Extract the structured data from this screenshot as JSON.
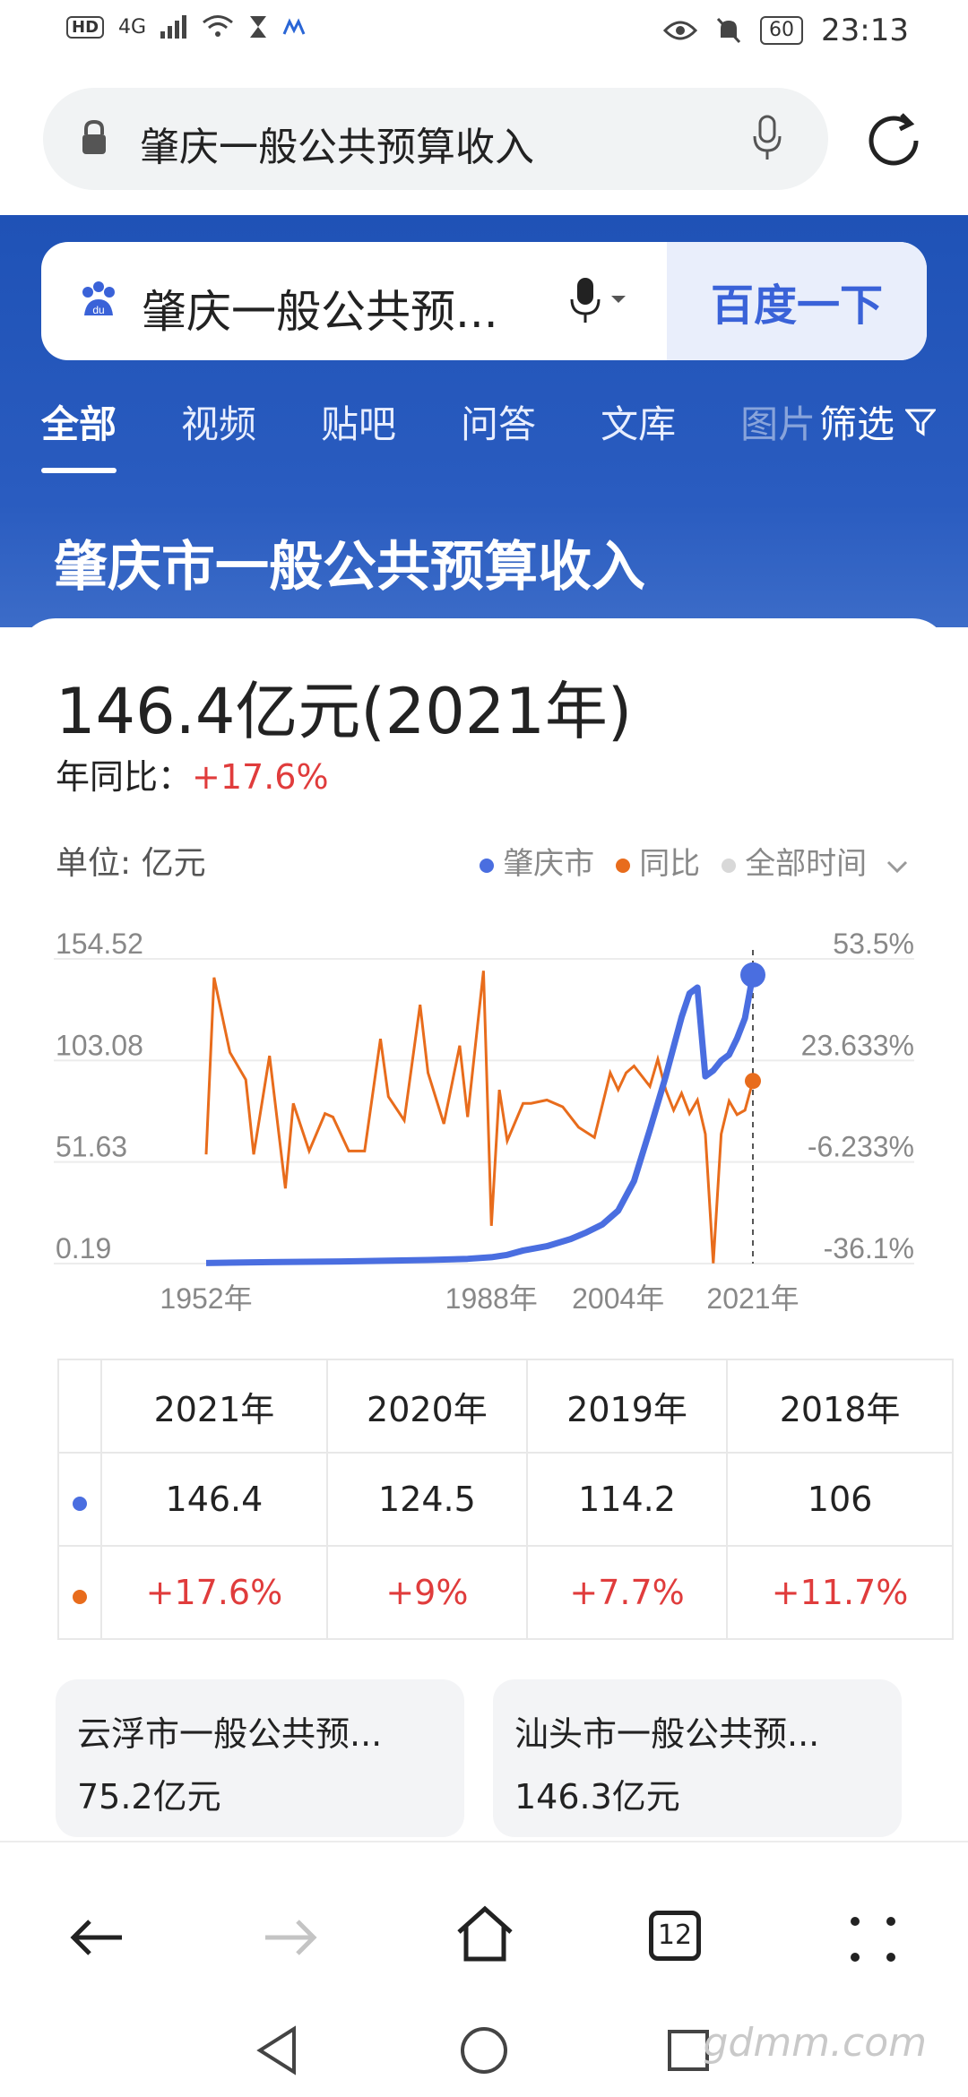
{
  "status_bar": {
    "time": "23:13",
    "battery": "60",
    "network": "4G",
    "hd": "HD"
  },
  "address_bar": {
    "query": "肇庆一般公共预算收入"
  },
  "baidu": {
    "query": "肇庆一般公共预...",
    "search_button": "百度一下",
    "tabs": [
      "全部",
      "视频",
      "贴吧",
      "问答",
      "文库",
      "图片"
    ],
    "filter_label": "筛选"
  },
  "page_title": "肇庆市一般公共预算收入",
  "headline": {
    "value": "146.4亿元(2021年)",
    "yoy_label": "年同比：",
    "yoy_value": "+17.6%"
  },
  "unit_label": "单位: 亿元",
  "legend": {
    "series1": "肇庆市",
    "series2": "同比",
    "time_filter": "全部时间"
  },
  "colors": {
    "series1": "#4a6ee0",
    "series2": "#e86c1c",
    "accent": "#3a62d8",
    "positive": "#e03c3c"
  },
  "chart_data": {
    "type": "line",
    "x_tick_labels": [
      "1952年",
      "1988年",
      "2004年",
      "2021年"
    ],
    "left_axis_ticks": [
      "154.52",
      "103.08",
      "51.63",
      "0.19"
    ],
    "right_axis_ticks": [
      "53.5%",
      "23.633%",
      "-6.233%",
      "-36.1%"
    ],
    "left_ylim": [
      0.19,
      154.52
    ],
    "right_ylim": [
      -36.1,
      53.5
    ],
    "xlim": [
      1952,
      2021
    ],
    "grid": true,
    "series": [
      {
        "name": "肇庆市",
        "axis": "left",
        "x": [
          1952,
          1960,
          1970,
          1980,
          1985,
          1988,
          1990,
          1992,
          1995,
          1998,
          2000,
          2002,
          2004,
          2006,
          2008,
          2010,
          2012,
          2013,
          2014,
          2015,
          2016,
          2017,
          2018,
          2019,
          2020,
          2021
        ],
        "values": [
          0.5,
          0.9,
          1.3,
          2.0,
          2.6,
          3.4,
          4.6,
          6.8,
          9.0,
          12.6,
          16.0,
          20.0,
          27.0,
          42.0,
          68.0,
          95.0,
          125.0,
          137.0,
          140.0,
          95.0,
          98.0,
          103.0,
          106.0,
          114.2,
          124.5,
          146.4
        ]
      },
      {
        "name": "同比",
        "axis": "right",
        "x": [
          1952,
          1953,
          1955,
          1957,
          1958,
          1960,
          1962,
          1963,
          1965,
          1967,
          1968,
          1970,
          1972,
          1974,
          1975,
          1977,
          1979,
          1980,
          1982,
          1984,
          1985,
          1987,
          1988,
          1989,
          1990,
          1992,
          1993,
          1995,
          1997,
          1999,
          2001,
          2003,
          2004,
          2005,
          2006,
          2008,
          2009,
          2010,
          2011,
          2012,
          2013,
          2014,
          2015,
          2016,
          2017,
          2018,
          2019,
          2020,
          2021
        ],
        "values": [
          -4.0,
          48.0,
          26.0,
          18.0,
          -4.0,
          25.0,
          -14.0,
          11.0,
          -3.0,
          8.0,
          7.0,
          -3.0,
          -3.0,
          30.0,
          13.0,
          6.0,
          40.0,
          20.0,
          5.0,
          28.0,
          7.0,
          50.0,
          -25.0,
          15.0,
          0.0,
          11.0,
          11.0,
          12.0,
          10.0,
          4.0,
          1.0,
          20.0,
          15.0,
          20.0,
          22.0,
          16.0,
          24.0,
          15.0,
          9.0,
          14.0,
          8.0,
          12.0,
          2.0,
          -36.0,
          2.0,
          11.7,
          7.7,
          9.0,
          17.6
        ]
      }
    ]
  },
  "table": {
    "years": [
      "2021年",
      "2020年",
      "2019年",
      "2018年"
    ],
    "revenue": [
      "146.4",
      "124.5",
      "114.2",
      "106"
    ],
    "yoy": [
      "+17.6%",
      "+9%",
      "+7.7%",
      "+11.7%"
    ]
  },
  "related": [
    {
      "title": "云浮市一般公共预...",
      "value": "75.2亿元"
    },
    {
      "title": "汕头市一般公共预...",
      "value": "146.3亿元"
    }
  ],
  "bottom_nav": {
    "tab_count": "12"
  },
  "watermark": "gdmm.com"
}
